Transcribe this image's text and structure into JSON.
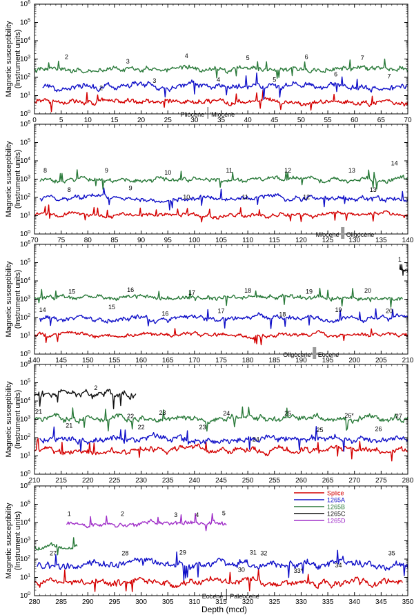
{
  "chart_data": {
    "type": "line",
    "ylabel": "Magnetic susceptibility",
    "ylabel_sub": "(Instrument units)",
    "xlabel": "Depth (mcd)",
    "y_ticks": [
      {
        "e": "0",
        "v": 0
      },
      {
        "e": "1",
        "v": 1
      },
      {
        "e": "2",
        "v": 2
      },
      {
        "e": "3",
        "v": 3
      },
      {
        "e": "4",
        "v": 4
      },
      {
        "e": "5",
        "v": 5
      },
      {
        "e": "6",
        "v": 6
      }
    ],
    "ylim_log10": [
      0,
      6
    ],
    "legend": {
      "placement": "top-right of bottom panel",
      "entries": [
        {
          "name": "Splice",
          "color": "#d40000"
        },
        {
          "name": "1265A",
          "color": "#1010c8"
        },
        {
          "name": "1265B",
          "color": "#2a7a3a"
        },
        {
          "name": "1265C",
          "color": "#111111"
        },
        {
          "name": "1265D",
          "color": "#a030c8"
        }
      ]
    },
    "panels": [
      {
        "xlim": [
          0,
          70
        ],
        "xticks": [
          "0",
          "5",
          "10",
          "15",
          "20",
          "25",
          "30",
          "35",
          "40",
          "45",
          "50",
          "55",
          "60",
          "65",
          "70"
        ],
        "series": [
          {
            "hole": "Splice",
            "color": "#d40000",
            "x0": 0,
            "x1": 70,
            "level": 0.65,
            "amp": 0.15
          },
          {
            "hole": "1265A",
            "color": "#1010c8",
            "x0": 1.5,
            "x1": 70,
            "level": 1.5,
            "amp": 0.18
          },
          {
            "hole": "1265B",
            "color": "#2a7a3a",
            "x0": 0,
            "x1": 70,
            "level": 2.45,
            "amp": 0.15
          }
        ],
        "labels": [
          {
            "t": "2",
            "x": 6,
            "lv": 3.0
          },
          {
            "t": "3",
            "x": 17.5,
            "lv": 2.75
          },
          {
            "t": "4",
            "x": 28.5,
            "lv": 3.05
          },
          {
            "t": "5",
            "x": 40,
            "lv": 2.95
          },
          {
            "t": "6",
            "x": 51,
            "lv": 3.0
          },
          {
            "t": "7",
            "x": 61.5,
            "lv": 2.95
          },
          {
            "t": "2",
            "x": 12.5,
            "lv": 1.3
          },
          {
            "t": "3",
            "x": 22.5,
            "lv": 1.7
          },
          {
            "t": "4",
            "x": 34.5,
            "lv": 1.75
          },
          {
            "t": "5",
            "x": 45,
            "lv": 1.75
          },
          {
            "t": "6",
            "x": 56.5,
            "lv": 2.05
          },
          {
            "t": "7",
            "x": 66.5,
            "lv": 1.95
          }
        ],
        "boundaries": [
          {
            "x": 32.5,
            "left": "Pliocene",
            "right": "Miocene",
            "mark": "line",
            "lv": -0.15
          }
        ]
      },
      {
        "xlim": [
          70,
          140
        ],
        "xticks": [
          "70",
          "75",
          "80",
          "85",
          "90",
          "95",
          "100",
          "105",
          "110",
          "115",
          "120",
          "125",
          "130",
          "135",
          "140"
        ],
        "series": [
          {
            "hole": "Splice",
            "color": "#d40000",
            "x0": 70,
            "x1": 140,
            "level": 1.05,
            "amp": 0.12
          },
          {
            "hole": "1265A",
            "color": "#1010c8",
            "x0": 71,
            "x1": 140,
            "level": 1.95,
            "amp": 0.15
          },
          {
            "hole": "1265B",
            "color": "#2a7a3a",
            "x0": 71,
            "x1": 140,
            "level": 2.95,
            "amp": 0.14
          }
        ],
        "labels": [
          {
            "t": "8",
            "x": 72,
            "lv": 3.35
          },
          {
            "t": "9",
            "x": 83.5,
            "lv": 3.35
          },
          {
            "t": "10",
            "x": 95,
            "lv": 3.25
          },
          {
            "t": "11",
            "x": 106.5,
            "lv": 3.35
          },
          {
            "t": "12",
            "x": 117.5,
            "lv": 3.35
          },
          {
            "t": "13",
            "x": 129.5,
            "lv": 3.35
          },
          {
            "t": "14",
            "x": 137.5,
            "lv": 3.75
          },
          {
            "t": "8",
            "x": 76.5,
            "lv": 2.3
          },
          {
            "t": "9",
            "x": 88,
            "lv": 2.4
          },
          {
            "t": "10",
            "x": 98.5,
            "lv": 1.9
          },
          {
            "t": "11",
            "x": 109.5,
            "lv": 1.9
          },
          {
            "t": "12",
            "x": 121,
            "lv": 1.9
          },
          {
            "t": "13",
            "x": 133.5,
            "lv": 2.3
          }
        ],
        "boundaries": [
          {
            "x": 127.8,
            "left": "Miocene",
            "right": "Oligocene",
            "mark": "bar",
            "lv": -0.15
          }
        ]
      },
      {
        "xlim": [
          140,
          210
        ],
        "xticks": [
          "140",
          "145",
          "150",
          "155",
          "160",
          "165",
          "170",
          "175",
          "180",
          "185",
          "190",
          "195",
          "200",
          "205",
          "210"
        ],
        "series": [
          {
            "hole": "Splice",
            "color": "#d40000",
            "x0": 140,
            "x1": 210,
            "level": 1.05,
            "amp": 0.12
          },
          {
            "hole": "1265A",
            "color": "#1010c8",
            "x0": 141,
            "x1": 210,
            "level": 1.95,
            "amp": 0.15
          },
          {
            "hole": "1265B",
            "color": "#2a7a3a",
            "x0": 140,
            "x1": 209,
            "level": 3.1,
            "amp": 0.14
          },
          {
            "hole": "1265C",
            "color": "#111111",
            "x0": 208.5,
            "x1": 210,
            "level": 4.6,
            "amp": 0.1
          }
        ],
        "labels": [
          {
            "t": "1",
            "x": 208.5,
            "lv": 5.05
          },
          {
            "t": "15",
            "x": 147,
            "lv": 3.3
          },
          {
            "t": "16",
            "x": 158,
            "lv": 3.4
          },
          {
            "t": "17",
            "x": 169.5,
            "lv": 3.25
          },
          {
            "t": "18",
            "x": 180,
            "lv": 3.35
          },
          {
            "t": "19",
            "x": 191.5,
            "lv": 3.3
          },
          {
            "t": "20",
            "x": 202.5,
            "lv": 3.35
          },
          {
            "t": "14",
            "x": 141.5,
            "lv": 2.3
          },
          {
            "t": "15",
            "x": 154.5,
            "lv": 2.45
          },
          {
            "t": "16",
            "x": 164.5,
            "lv": 2.1
          },
          {
            "t": "17",
            "x": 175,
            "lv": 2.25
          },
          {
            "t": "18",
            "x": 186.5,
            "lv": 2.05
          },
          {
            "t": "19",
            "x": 197,
            "lv": 2.3
          },
          {
            "t": "20",
            "x": 206.5,
            "lv": 2.25
          }
        ],
        "boundaries": [
          {
            "x": 192.5,
            "left": "Oligocene",
            "right": "Eocene",
            "mark": "bar",
            "lv": -0.15
          }
        ]
      },
      {
        "xlim": [
          210,
          280
        ],
        "xticks": [
          "210",
          "215",
          "220",
          "225",
          "230",
          "235",
          "240",
          "245",
          "250",
          "255",
          "260",
          "265",
          "270",
          "275",
          "280"
        ],
        "series": [
          {
            "hole": "Splice",
            "color": "#d40000",
            "x0": 210,
            "x1": 280,
            "level": 1.3,
            "amp": 0.18
          },
          {
            "hole": "1265A",
            "color": "#1010c8",
            "x0": 211,
            "x1": 280,
            "level": 1.9,
            "amp": 0.2
          },
          {
            "hole": "1265B",
            "color": "#2a7a3a",
            "x0": 210,
            "x1": 280,
            "level": 3.05,
            "amp": 0.18
          },
          {
            "hole": "1265C",
            "color": "#111111",
            "x0": 210,
            "x1": 229,
            "level": 4.4,
            "amp": 0.22
          }
        ],
        "labels": [
          {
            "t": "2",
            "x": 221.5,
            "lv": 4.6
          },
          {
            "t": "21",
            "x": 210.8,
            "lv": 3.3
          },
          {
            "t": "22",
            "x": 228,
            "lv": 3.05
          },
          {
            "t": "23",
            "x": 234,
            "lv": 3.25
          },
          {
            "t": "24",
            "x": 246,
            "lv": 3.2
          },
          {
            "t": "25",
            "x": 257.5,
            "lv": 3.2
          },
          {
            "t": "26*",
            "x": 269,
            "lv": 3.1
          },
          {
            "t": "27",
            "x": 278.3,
            "lv": 3.05
          },
          {
            "t": "21",
            "x": 216.5,
            "lv": 2.55
          },
          {
            "t": "22",
            "x": 230,
            "lv": 2.45
          },
          {
            "t": "23",
            "x": 241.5,
            "lv": 2.45
          },
          {
            "t": "24",
            "x": 251.5,
            "lv": 1.8
          },
          {
            "t": "25",
            "x": 263.5,
            "lv": 2.3
          },
          {
            "t": "26",
            "x": 274.5,
            "lv": 2.35
          }
        ],
        "boundaries": []
      },
      {
        "xlim": [
          280,
          350
        ],
        "xticks": [
          "280",
          "285",
          "290",
          "295",
          "300",
          "305",
          "310",
          "315",
          "320",
          "325",
          "330",
          "335",
          "340",
          "345",
          "350"
        ],
        "series": [
          {
            "hole": "Splice",
            "color": "#d40000",
            "x0": 280,
            "x1": 349,
            "level": 0.75,
            "amp": 0.2
          },
          {
            "hole": "1265A",
            "color": "#1010c8",
            "x0": 280.5,
            "x1": 350,
            "level": 1.7,
            "amp": 0.22
          },
          {
            "hole": "1265B",
            "color": "#2a7a3a",
            "x0": 280,
            "x1": 288,
            "level": 2.65,
            "amp": 0.15
          },
          {
            "hole": "1265D",
            "color": "#a030c8",
            "x0": 286,
            "x1": 316,
            "level": 3.95,
            "amp": 0.15
          }
        ],
        "labels": [
          {
            "t": "1",
            "x": 286.5,
            "lv": 4.35
          },
          {
            "t": "2",
            "x": 296.5,
            "lv": 4.35
          },
          {
            "t": "3",
            "x": 306.5,
            "lv": 4.3
          },
          {
            "t": "4",
            "x": 310.5,
            "lv": 4.3
          },
          {
            "t": "5",
            "x": 315.5,
            "lv": 4.4
          },
          {
            "t": "27",
            "x": 283.5,
            "lv": 2.2
          },
          {
            "t": "28",
            "x": 297,
            "lv": 2.2
          },
          {
            "t": "29",
            "x": 307.8,
            "lv": 2.25
          },
          {
            "t": "30",
            "x": 318.8,
            "lv": 1.3
          },
          {
            "t": "31",
            "x": 321,
            "lv": 2.25
          },
          {
            "t": "32",
            "x": 323,
            "lv": 2.2
          },
          {
            "t": "33*",
            "x": 329.5,
            "lv": 1.25
          },
          {
            "t": "34",
            "x": 337,
            "lv": 1.55
          },
          {
            "t": "35",
            "x": 347,
            "lv": 2.2
          }
        ],
        "boundaries": [
          {
            "x": 316,
            "left": "Eocene",
            "right": "Paleocene",
            "mark": "line",
            "lv": -0.15
          }
        ]
      }
    ]
  }
}
